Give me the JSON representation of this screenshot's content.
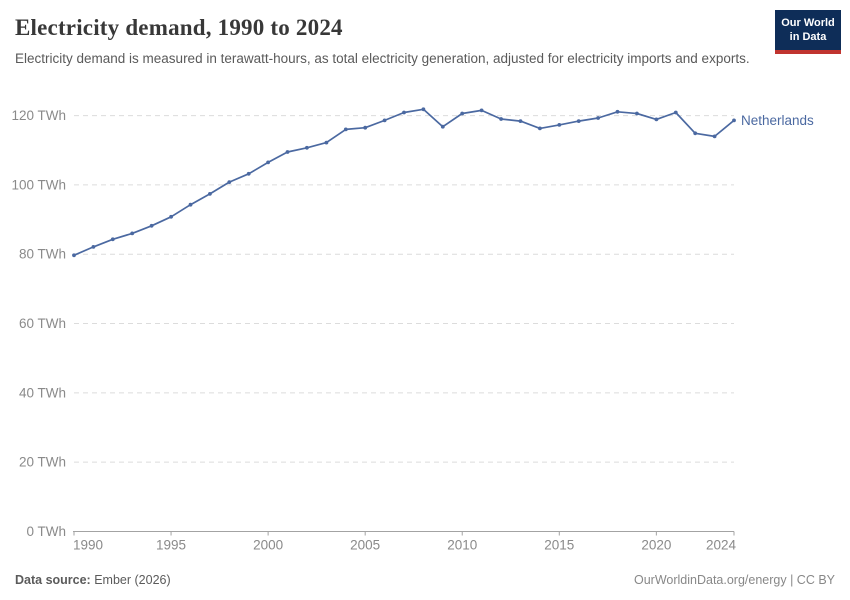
{
  "header": {
    "title": "Electricity demand, 1990 to 2024",
    "subtitle": "Electricity demand is measured in terawatt-hours, as total electricity generation, adjusted for electricity imports and exports."
  },
  "logo": {
    "line1": "Our World",
    "line2": "in Data",
    "bg_color": "#0e2d58",
    "accent_color": "#c0342f"
  },
  "chart_data": {
    "type": "line",
    "title": "Electricity demand, 1990 to 2024",
    "ylabel": "",
    "xlabel": "",
    "unit": "TWh",
    "x": [
      1990,
      1991,
      1992,
      1993,
      1994,
      1995,
      1996,
      1997,
      1998,
      1999,
      2000,
      2001,
      2002,
      2003,
      2004,
      2005,
      2006,
      2007,
      2008,
      2009,
      2010,
      2011,
      2012,
      2013,
      2014,
      2015,
      2016,
      2017,
      2018,
      2019,
      2020,
      2021,
      2022,
      2023,
      2024
    ],
    "series": [
      {
        "name": "Netherlands",
        "color": "#4b69a1",
        "values": [
          79.7,
          82.1,
          84.3,
          86.0,
          88.2,
          90.8,
          94.3,
          97.4,
          100.8,
          103.2,
          106.5,
          109.5,
          110.7,
          112.2,
          116.0,
          116.5,
          118.6,
          120.9,
          121.8,
          116.8,
          120.6,
          121.5,
          119.0,
          118.4,
          116.3,
          117.3,
          118.4,
          119.3,
          121.1,
          120.6,
          118.9,
          120.9,
          114.9,
          114.0,
          118.6
        ]
      }
    ],
    "xlim": [
      1990,
      2024
    ],
    "ylim": [
      0,
      125
    ],
    "x_ticks": [
      1990,
      1995,
      2000,
      2005,
      2010,
      2015,
      2020,
      2024
    ],
    "y_ticks": [
      0,
      20,
      40,
      60,
      80,
      100,
      120
    ],
    "y_tick_suffix": " TWh",
    "grid": "horizontal dashed",
    "legend_position": "end-of-line label"
  },
  "footer": {
    "source_label": "Data source:",
    "source_value": " Ember (2026)",
    "attribution": "OurWorldinData.org/energy | CC BY"
  },
  "colors": {
    "line": "#4b69a1",
    "grid": "#dcdcdc",
    "axis": "#a3a3a3",
    "tick_label": "#8a8a8a",
    "title": "#383838",
    "subtitle": "#5a5a5a",
    "footer": "#5b5b5b",
    "attribution": "#888888"
  }
}
